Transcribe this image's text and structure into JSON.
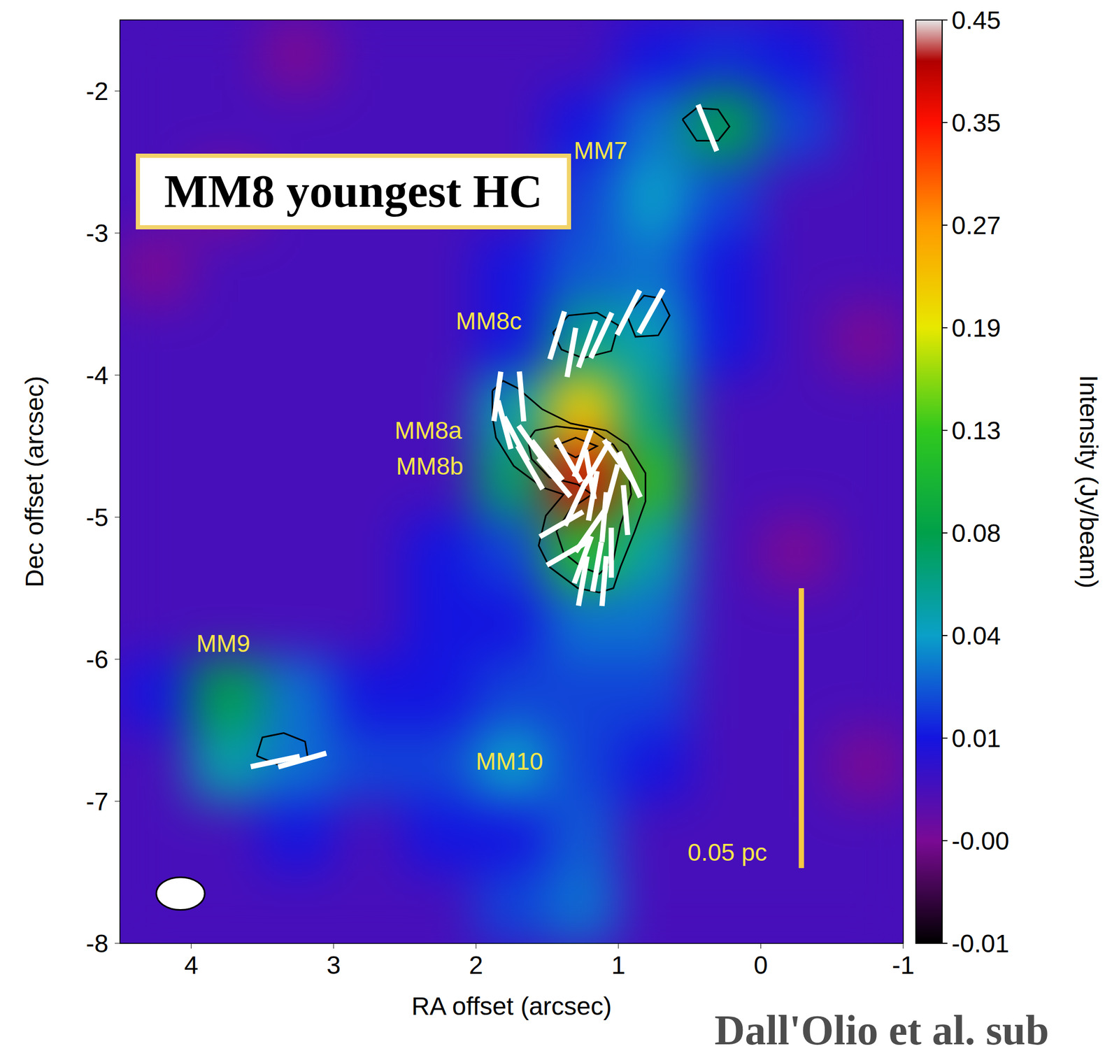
{
  "chart_data": {
    "type": "heatmap",
    "title": "MM8 youngest HC",
    "caption": "Dall'Olio et al. sub",
    "x_label": "RA offset (arcsec)",
    "y_label": "Dec offset (arcsec)",
    "xlim": [
      4.5,
      -1
    ],
    "ylim": [
      -8,
      -1.5
    ],
    "xticks": [
      4,
      3,
      2,
      1,
      0,
      -1
    ],
    "yticks": [
      -2,
      -3,
      -4,
      -5,
      -6,
      -7,
      -8
    ],
    "cells": {
      "x": [
        4.25,
        3.75,
        3.25,
        2.75,
        2.25,
        1.75,
        1.25,
        0.75,
        0.25,
        -0.25,
        -0.75
      ],
      "y": [
        -1.75,
        -2.25,
        -2.75,
        -3.25,
        -3.75,
        -4.25,
        -4.75,
        -5.25,
        -5.75,
        -6.25,
        -6.75,
        -7.25,
        -7.75
      ],
      "values": [
        [
          0.005,
          0.005,
          0,
          0.005,
          0.005,
          0.005,
          0.005,
          0.01,
          0.015,
          0.01,
          0.005
        ],
        [
          0.005,
          0.005,
          0.005,
          0.005,
          0.005,
          0.005,
          0.01,
          0.03,
          0.08,
          0.02,
          0.005
        ],
        [
          0.005,
          0,
          0.005,
          0.005,
          0.005,
          0.005,
          0.02,
          0.04,
          0.02,
          0.005,
          0.005
        ],
        [
          0,
          0.005,
          0.005,
          0.005,
          0.005,
          0.01,
          0.025,
          0.03,
          0.01,
          0.005,
          0.005
        ],
        [
          0.005,
          0.005,
          0.005,
          0.005,
          0.005,
          0.01,
          0.06,
          0.045,
          0.01,
          0.005,
          0
        ],
        [
          0.005,
          0.005,
          0.005,
          0.005,
          0.005,
          0.05,
          0.22,
          0.06,
          0.005,
          0.005,
          0.005
        ],
        [
          0.005,
          0.005,
          0.005,
          0.005,
          0.005,
          0.07,
          0.38,
          0.12,
          0.005,
          0.005,
          0.005
        ],
        [
          0.005,
          0.005,
          0.005,
          0.005,
          0.01,
          0.02,
          0.12,
          0.05,
          0.005,
          0,
          0.005
        ],
        [
          0.005,
          0.005,
          0.005,
          0.005,
          0.01,
          0.01,
          0.03,
          0.03,
          0.005,
          0.005,
          0.005
        ],
        [
          0.01,
          0.08,
          0.03,
          0.01,
          0.01,
          0.02,
          0.02,
          0.02,
          0.005,
          0.005,
          0.005
        ],
        [
          0.005,
          0.05,
          0.03,
          0.02,
          0.02,
          0.04,
          0.02,
          0.01,
          0.005,
          0.005,
          0
        ],
        [
          0.005,
          0.005,
          0.01,
          0.005,
          0.01,
          0.01,
          0.025,
          0.005,
          0.005,
          0.005,
          0.005
        ],
        [
          0.005,
          0.005,
          0.005,
          0.005,
          0.005,
          0.02,
          0.03,
          0.005,
          0.005,
          0.005,
          0.005
        ]
      ]
    },
    "colorbar": {
      "label": "Intensity (Jy/beam)",
      "range": [
        -0.01,
        0.45
      ],
      "ticks": [
        -0.01,
        {
          "value": 0,
          "label": "-0.00"
        },
        0.01,
        0.04,
        0.08,
        0.13,
        0.19,
        0.27,
        0.35,
        0.45
      ]
    },
    "contours": [
      [
        [
          0.55,
          -2.2
        ],
        [
          0.45,
          -2.12
        ],
        [
          0.3,
          -2.13
        ],
        [
          0.22,
          -2.25
        ],
        [
          0.3,
          -2.35
        ],
        [
          0.45,
          -2.35
        ],
        [
          0.55,
          -2.2
        ]
      ],
      [
        [
          0.94,
          -3.58
        ],
        [
          0.82,
          -3.44
        ],
        [
          0.7,
          -3.46
        ],
        [
          0.64,
          -3.58
        ],
        [
          0.72,
          -3.72
        ],
        [
          0.88,
          -3.73
        ],
        [
          0.94,
          -3.58
        ]
      ],
      [
        [
          1.46,
          -3.7
        ],
        [
          1.35,
          -3.58
        ],
        [
          1.15,
          -3.56
        ],
        [
          1.0,
          -3.65
        ],
        [
          1.05,
          -3.83
        ],
        [
          1.25,
          -3.88
        ],
        [
          1.4,
          -3.82
        ],
        [
          1.46,
          -3.7
        ]
      ],
      [
        [
          1.885,
          -4.11
        ],
        [
          1.81,
          -4.04
        ],
        [
          1.71,
          -4.09
        ],
        [
          1.535,
          -4.24
        ],
        [
          1.335,
          -4.34
        ],
        [
          1.085,
          -4.39
        ],
        [
          0.935,
          -4.49
        ],
        [
          0.81,
          -4.69
        ],
        [
          0.81,
          -4.89
        ],
        [
          0.885,
          -5.1
        ],
        [
          0.985,
          -5.35
        ],
        [
          1.035,
          -5.5
        ],
        [
          1.135,
          -5.53
        ],
        [
          1.285,
          -5.5
        ],
        [
          1.485,
          -5.35
        ],
        [
          1.56,
          -5.2
        ],
        [
          1.51,
          -4.99
        ],
        [
          1.385,
          -4.84
        ],
        [
          1.535,
          -4.79
        ],
        [
          1.735,
          -4.64
        ],
        [
          1.86,
          -4.44
        ],
        [
          1.885,
          -4.29
        ],
        [
          1.885,
          -4.11
        ]
      ],
      [
        [
          1.585,
          -4.39
        ],
        [
          1.435,
          -4.36
        ],
        [
          1.185,
          -4.39
        ],
        [
          1.035,
          -4.49
        ],
        [
          0.935,
          -4.64
        ],
        [
          0.91,
          -4.84
        ],
        [
          0.985,
          -5.05
        ],
        [
          1.035,
          -5.3
        ],
        [
          1.135,
          -5.4
        ],
        [
          1.26,
          -5.35
        ],
        [
          1.385,
          -5.25
        ],
        [
          1.435,
          -5.1
        ],
        [
          1.335,
          -4.94
        ],
        [
          1.185,
          -4.84
        ],
        [
          1.285,
          -4.77
        ],
        [
          1.485,
          -4.72
        ],
        [
          1.61,
          -4.59
        ],
        [
          1.635,
          -4.46
        ],
        [
          1.585,
          -4.39
        ]
      ],
      [
        [
          1.45,
          -4.5
        ],
        [
          1.3,
          -4.44
        ],
        [
          1.15,
          -4.5
        ],
        [
          1.3,
          -4.58
        ],
        [
          1.45,
          -4.5
        ]
      ],
      [
        [
          3.54,
          -6.68
        ],
        [
          3.5,
          -6.55
        ],
        [
          3.35,
          -6.52
        ],
        [
          3.2,
          -6.58
        ],
        [
          3.18,
          -6.7
        ],
        [
          3.35,
          -6.76
        ],
        [
          3.54,
          -6.68
        ]
      ]
    ],
    "vectors": [
      {
        "x": 0.375,
        "y": -2.26,
        "angle": 22
      },
      {
        "x": 1.43,
        "y": -3.72,
        "angle": -17
      },
      {
        "x": 1.33,
        "y": -3.84,
        "angle": -10
      },
      {
        "x": 1.22,
        "y": -3.78,
        "angle": -20
      },
      {
        "x": 1.12,
        "y": -3.72,
        "angle": -25
      },
      {
        "x": 0.93,
        "y": -3.56,
        "angle": -27
      },
      {
        "x": 0.77,
        "y": -3.55,
        "angle": -29
      },
      {
        "x": 1.85,
        "y": -4.15,
        "angle": -8
      },
      {
        "x": 1.68,
        "y": -4.15,
        "angle": 5
      },
      {
        "x": 1.8,
        "y": -4.35,
        "angle": 15
      },
      {
        "x": 1.72,
        "y": -4.45,
        "angle": 28
      },
      {
        "x": 1.6,
        "y": -4.5,
        "angle": 35
      },
      {
        "x": 1.5,
        "y": -4.6,
        "angle": 38
      },
      {
        "x": 1.62,
        "y": -4.65,
        "angle": 30
      },
      {
        "x": 1.45,
        "y": -4.72,
        "angle": 40
      },
      {
        "x": 1.35,
        "y": -4.6,
        "angle": 30
      },
      {
        "x": 1.25,
        "y": -4.55,
        "angle": -20
      },
      {
        "x": 1.15,
        "y": -4.62,
        "angle": -30
      },
      {
        "x": 1.0,
        "y": -4.6,
        "angle": 35
      },
      {
        "x": 0.92,
        "y": -4.7,
        "angle": 25
      },
      {
        "x": 1.05,
        "y": -4.8,
        "angle": -15
      },
      {
        "x": 1.18,
        "y": -4.85,
        "angle": -10
      },
      {
        "x": 1.3,
        "y": -4.9,
        "angle": -25
      },
      {
        "x": 0.95,
        "y": -4.95,
        "angle": 5
      },
      {
        "x": 1.1,
        "y": -5.0,
        "angle": -5
      },
      {
        "x": 1.2,
        "y": -5.1,
        "angle": -35
      },
      {
        "x": 1.4,
        "y": -5.05,
        "angle": -60
      },
      {
        "x": 1.35,
        "y": -5.25,
        "angle": -60
      },
      {
        "x": 1.25,
        "y": -5.3,
        "angle": -20
      },
      {
        "x": 1.15,
        "y": -5.35,
        "angle": -10
      },
      {
        "x": 1.05,
        "y": -5.25,
        "angle": 0
      },
      {
        "x": 1.25,
        "y": -5.45,
        "angle": -10
      },
      {
        "x": 1.1,
        "y": -5.45,
        "angle": -5
      },
      {
        "x": 1.2,
        "y": -4.7,
        "angle": 10
      },
      {
        "x": 3.41,
        "y": -6.72,
        "angle": -78
      },
      {
        "x": 3.22,
        "y": -6.71,
        "angle": -74
      }
    ],
    "annotations": [
      {
        "text": "MM7",
        "x": 1.125,
        "y": -2.42
      },
      {
        "text": "MM8c",
        "x": 1.91,
        "y": -3.62
      },
      {
        "text": "MM8a",
        "x": 2.335,
        "y": -4.39
      },
      {
        "text": "MM8b",
        "x": 2.325,
        "y": -4.64
      },
      {
        "text": "MM9",
        "x": 3.775,
        "y": -5.89
      },
      {
        "text": "MM10",
        "x": 1.765,
        "y": -6.72
      }
    ],
    "scale_bar": {
      "label": "0.05 pc",
      "x": -0.285,
      "y": [
        -7.47,
        -5.5
      ],
      "label_x": 0.235,
      "label_y": -7.36
    },
    "beam": {
      "x": 4.075,
      "y": -7.65,
      "major": 0.34,
      "minor": 0.23
    }
  }
}
